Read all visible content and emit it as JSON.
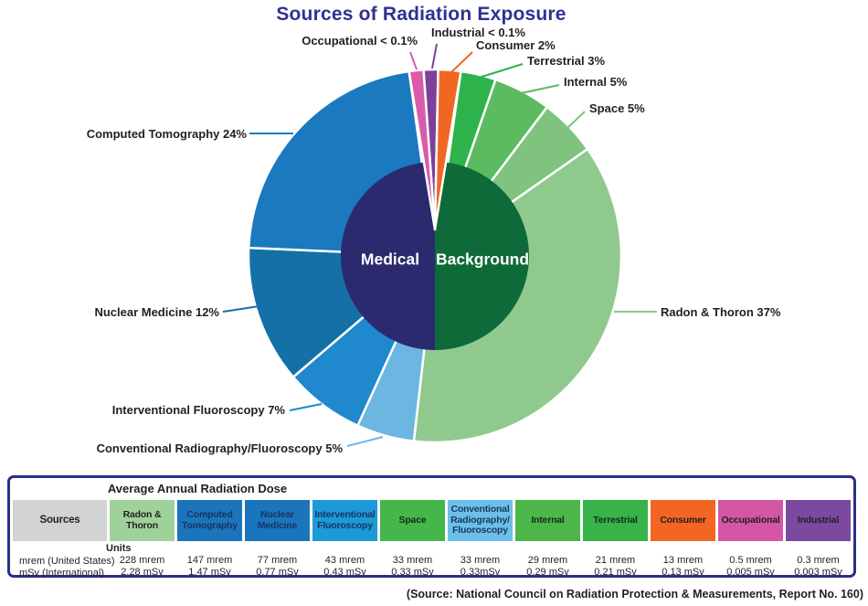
{
  "title": "Sources of Radiation Exposure",
  "source_note": "(Source: National Council on Radiation Protection & Measurements, Report No. 160)",
  "chart_data": {
    "type": "pie",
    "title": "Sources of Radiation Exposure",
    "legend_position": "callout-labels",
    "inner_ring": {
      "medical_label": "Medical",
      "background_label": "Background",
      "medical_color": "#2b2a6e",
      "background_color": "#0e6a39"
    },
    "slices": [
      {
        "id": "industrial",
        "name": "Industrial",
        "label": "Industrial < 0.1%",
        "percent": 0.1,
        "percent_text": "< 0.1%",
        "color": "#7f3f98",
        "visual_deg": 4.5,
        "thin": true
      },
      {
        "id": "consumer",
        "name": "Consumer",
        "label": "Consumer 2%",
        "percent": 2,
        "percent_text": "2%",
        "color": "#f06724",
        "visual_deg": 7,
        "thin": true
      },
      {
        "id": "terrestrial",
        "name": "Terrestrial",
        "label": "Terrestrial 3%",
        "percent": 3,
        "percent_text": "3%",
        "color": "#2eb34c",
        "visual_deg": 11,
        "thin": false
      },
      {
        "id": "internal",
        "name": "Internal",
        "label": "Internal 5%",
        "percent": 5,
        "percent_text": "5%",
        "color": "#5cbb60",
        "visual_deg": 18,
        "thin": false
      },
      {
        "id": "space",
        "name": "Space",
        "label": "Space 5%",
        "percent": 5,
        "percent_text": "5%",
        "color": "#7fc37f",
        "visual_deg": 18,
        "thin": false
      },
      {
        "id": "radon",
        "name": "Radon & Thoron",
        "label": "Radon & Thoron 37%",
        "percent": 37,
        "percent_text": "37%",
        "color": "#90c98e",
        "visual_deg": 131.5,
        "thin": false
      },
      {
        "id": "conventional",
        "name": "Conventional Radiography/Fluoroscopy",
        "label": "Conventional Radiography/Fluoroscopy 5%",
        "percent": 5,
        "percent_text": "5%",
        "color": "#6cb6e2",
        "visual_deg": 18,
        "thin": false
      },
      {
        "id": "interventional",
        "name": "Interventional Fluoroscopy",
        "label": "Interventional Fluoroscopy 7%",
        "percent": 7,
        "percent_text": "7%",
        "color": "#2088cd",
        "visual_deg": 25,
        "thin": false
      },
      {
        "id": "nuclear",
        "name": "Nuclear Medicine",
        "label": "Nuclear Medicine 12%",
        "percent": 12,
        "percent_text": "12%",
        "color": "#1470a6",
        "visual_deg": 43,
        "thin": false
      },
      {
        "id": "ct",
        "name": "Computed Tomography",
        "label": "Computed Tomography 24%",
        "percent": 24,
        "percent_text": "24%",
        "color": "#1b79c0",
        "visual_deg": 79.5,
        "thin": false
      },
      {
        "id": "occupational",
        "name": "Occupational",
        "label": "Occupational < 0.1%",
        "percent": 0.1,
        "percent_text": "< 0.1%",
        "color": "#d95cab",
        "visual_deg": 4.5,
        "thin": true
      }
    ]
  },
  "table": {
    "title": "Average Annual Radiation Dose",
    "sources_header": {
      "label": "Sources",
      "bg": "#d1d3d4",
      "fg": "#231f20"
    },
    "units": {
      "title": "Units",
      "line1": "mrem (United States)",
      "line2": "mSv (International)"
    },
    "columns": [
      {
        "label": "Radon & Thoron",
        "bg": "#9fd29b",
        "fg": "#231f20",
        "mrem": "228 mrem",
        "msv": "2.28 mSv"
      },
      {
        "label": "Computed Tomography",
        "bg": "#1b75bc",
        "fg": "#16345f",
        "mrem": "147 mrem",
        "msv": "1.47 mSv"
      },
      {
        "label": "Nuclear Medicine",
        "bg": "#1b75bc",
        "fg": "#16345f",
        "mrem": "77 mrem",
        "msv": "0.77 mSv"
      },
      {
        "label": "Interventional Fluoroscopy",
        "bg": "#1b9ad7",
        "fg": "#16345f",
        "mrem": "43 mrem",
        "msv": "0.43 mSv"
      },
      {
        "label": "Space",
        "bg": "#45b649",
        "fg": "#152a1c",
        "mrem": "33 mrem",
        "msv": "0.33 mSv"
      },
      {
        "label": "Conventional Radiography/Fluoroscopy",
        "bg": "#6cbfe8",
        "fg": "#1a3a5c",
        "mrem": "33 mrem",
        "msv": "0.33mSv"
      },
      {
        "label": "Internal",
        "bg": "#4cb748",
        "fg": "#152a1c",
        "mrem": "29 mrem",
        "msv": "0.29 mSv"
      },
      {
        "label": "Terrestrial",
        "bg": "#37b34a",
        "fg": "#152a1c",
        "mrem": "21 mrem",
        "msv": "0.21 mSv"
      },
      {
        "label": "Consumer",
        "bg": "#f26522",
        "fg": "#231f20",
        "mrem": "13 mrem",
        "msv": "0.13 mSv"
      },
      {
        "label": "Occupational",
        "bg": "#d456a5",
        "fg": "#231f20",
        "mrem": "0.5 mrem",
        "msv": "0.005 mSv"
      },
      {
        "label": "Industrial",
        "bg": "#7b4aa0",
        "fg": "#231f20",
        "mrem": "0.3 mrem",
        "msv": "0.003 mSv"
      }
    ]
  }
}
